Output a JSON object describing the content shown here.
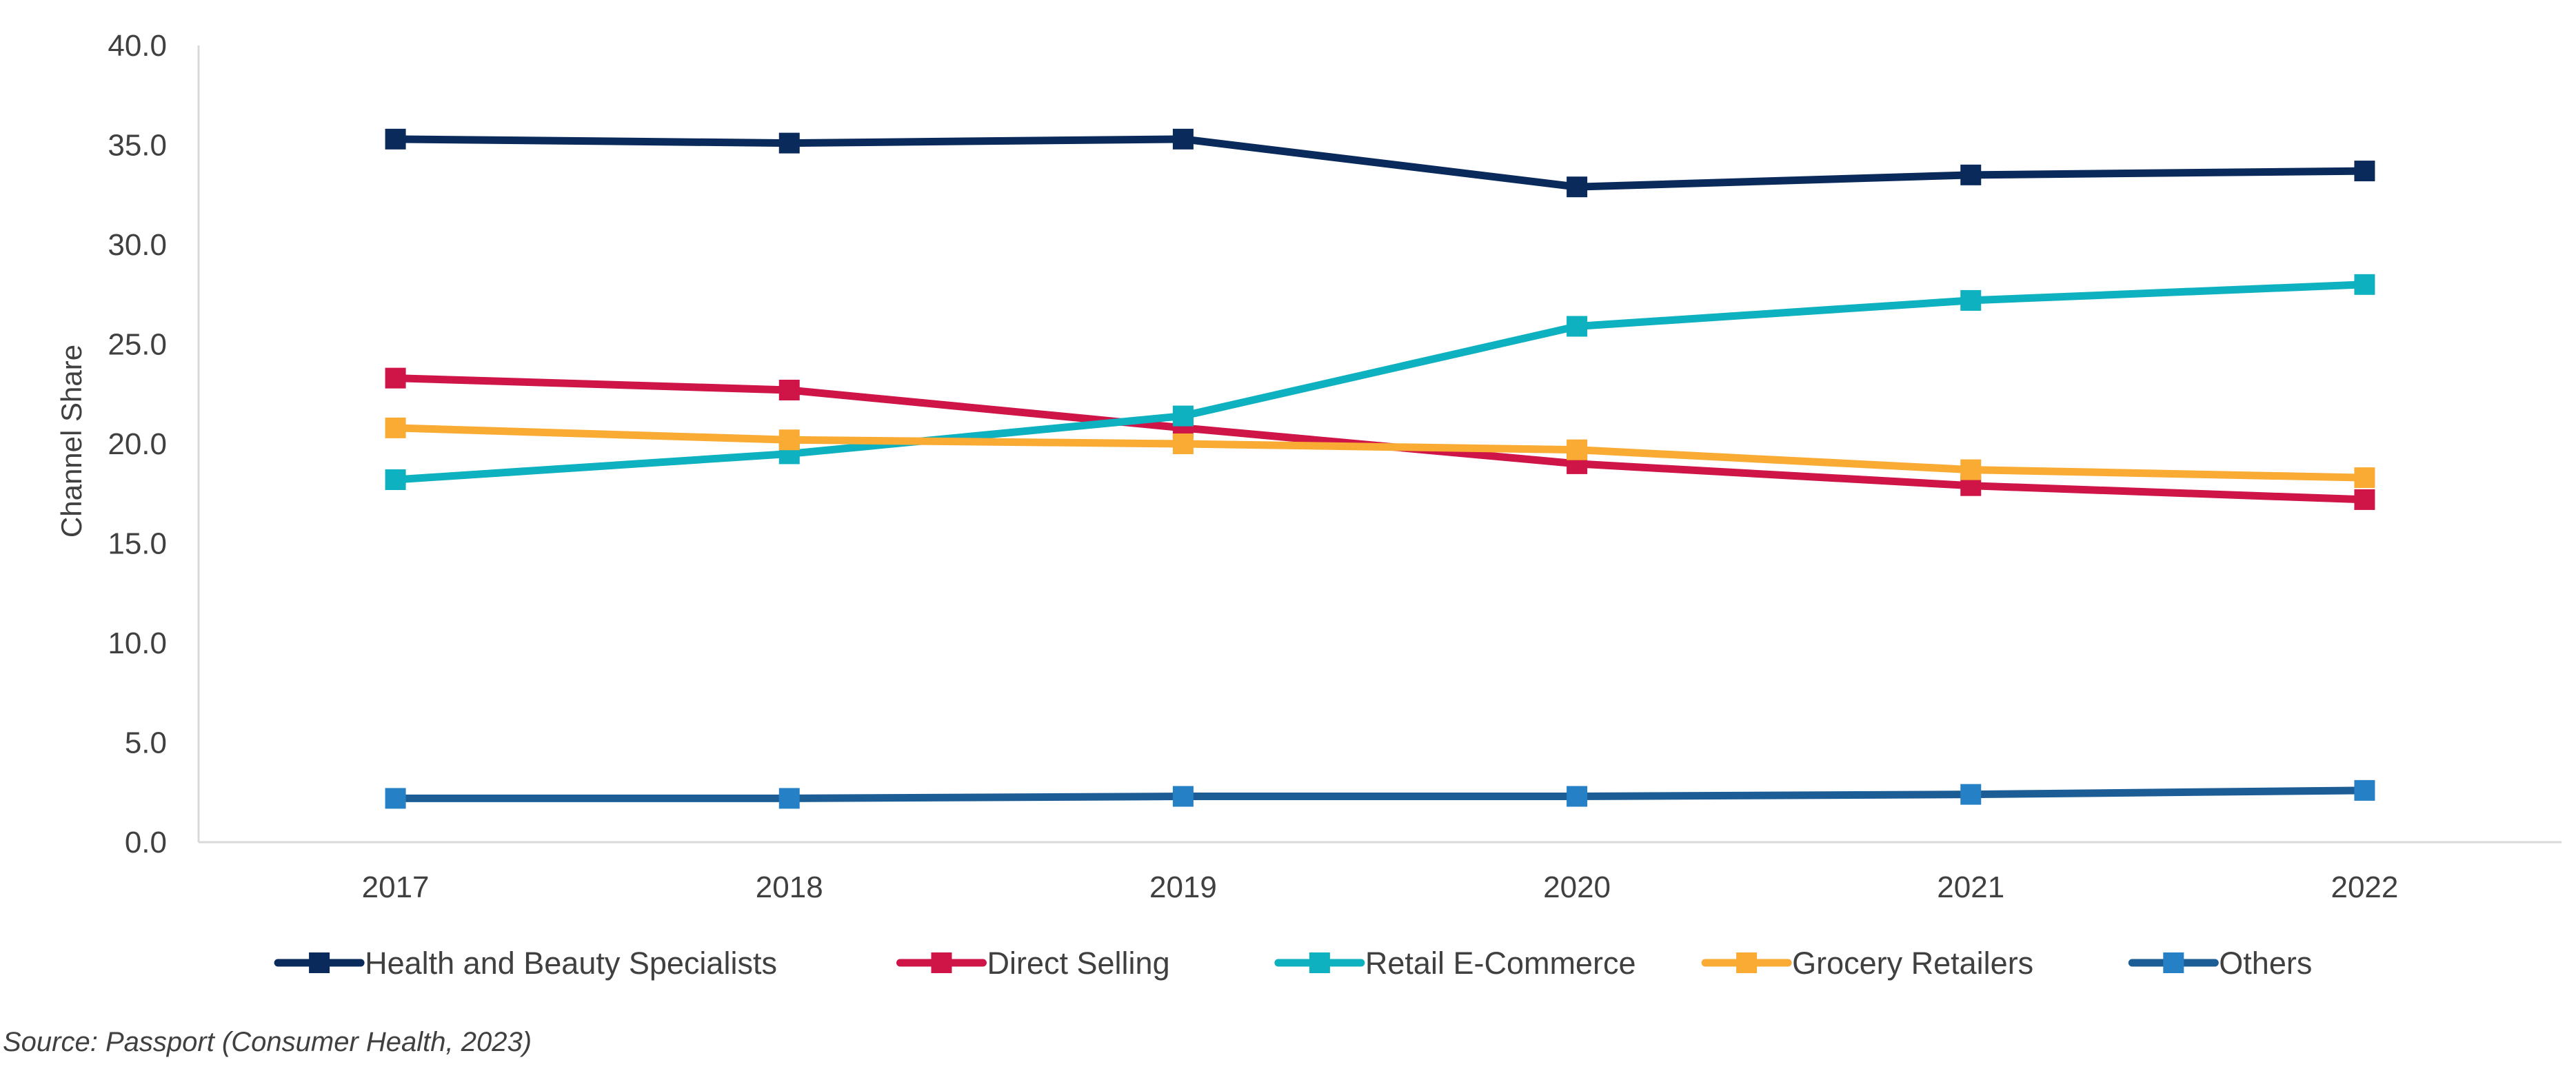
{
  "chart_data": {
    "type": "line",
    "title": "",
    "xlabel": "",
    "ylabel": "Channel Share",
    "categories": [
      "2017",
      "2018",
      "2019",
      "2020",
      "2021",
      "2022"
    ],
    "ylim": [
      0,
      40
    ],
    "yticks": [
      "0.0",
      "5.0",
      "10.0",
      "15.0",
      "20.0",
      "25.0",
      "30.0",
      "35.0",
      "40.0"
    ],
    "grid": false,
    "legend_position": "bottom",
    "marker": "square",
    "series": [
      {
        "name": "Health and Beauty Specialists",
        "color": "#0b2a5c",
        "values": [
          35.3,
          35.1,
          35.3,
          32.9,
          33.5,
          33.7
        ]
      },
      {
        "name": "Direct Selling",
        "color": "#cf1447",
        "values": [
          23.3,
          22.7,
          20.8,
          19.0,
          17.9,
          17.2
        ]
      },
      {
        "name": "Retail E-Commerce",
        "color": "#0db1bf",
        "values": [
          18.2,
          19.5,
          21.4,
          25.9,
          27.2,
          28.0
        ]
      },
      {
        "name": "Grocery Retailers",
        "color": "#f9ab33",
        "values": [
          20.8,
          20.2,
          20.0,
          19.7,
          18.7,
          18.3
        ]
      },
      {
        "name": "Others",
        "color": "#1d5d96",
        "marker_color": "#2680c6",
        "values": [
          2.2,
          2.2,
          2.3,
          2.3,
          2.4,
          2.6
        ]
      }
    ]
  },
  "source": "Source: Passport (Consumer Health, 2023)"
}
